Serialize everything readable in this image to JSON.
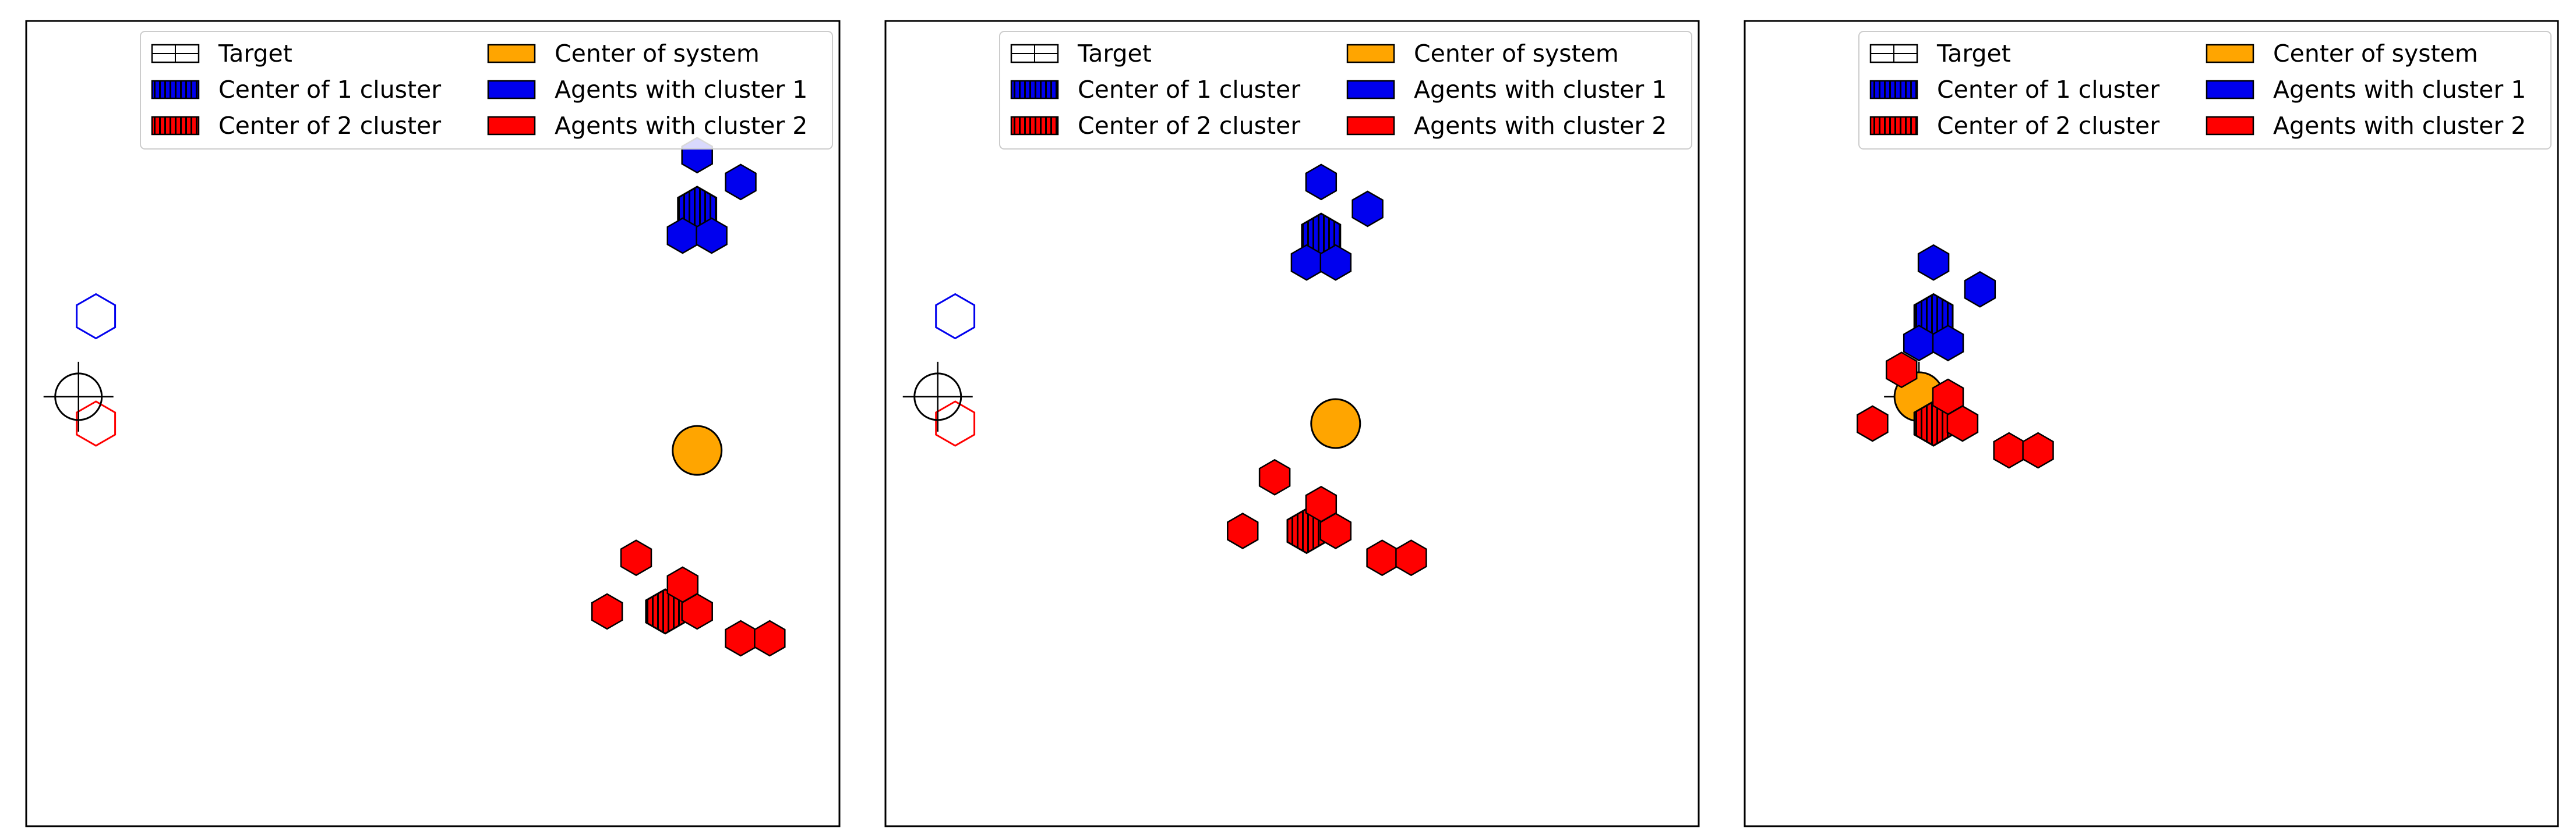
{
  "legend": {
    "target": "Target",
    "center_system": "Center of system",
    "center_cluster_1": "Center of 1 cluster",
    "agents_cluster_1": "Agents with cluster 1",
    "center_cluster_2": "Center of 2 cluster",
    "agents_cluster_2": "Agents with cluster 2"
  },
  "colors": {
    "cluster_1": "#0000ee",
    "cluster_1_center": "#000080",
    "cluster_2": "#ff0000",
    "cluster_2_center": "#8b0000",
    "system_center": "#ffa500",
    "target": "#000000"
  },
  "chart_data": [
    {
      "type": "scatter",
      "panel": 1,
      "xlim": [
        0,
        28
      ],
      "ylim": [
        -16,
        14
      ],
      "target": {
        "x": 1.8,
        "y": 0
      },
      "center_of_system": {
        "x": 23.1,
        "y": -2
      },
      "cluster_1": {
        "center": {
          "x": 23.1,
          "y": 7
        },
        "agents": [
          {
            "x": 23.1,
            "y": 9
          },
          {
            "x": 24.6,
            "y": 8
          },
          {
            "x": 22.6,
            "y": 6
          },
          {
            "x": 23.6,
            "y": 6
          }
        ],
        "target_marker": {
          "x": 2.4,
          "y": 3
        }
      },
      "cluster_2": {
        "center": {
          "x": 22.0,
          "y": -8
        },
        "agents": [
          {
            "x": 21.0,
            "y": -6
          },
          {
            "x": 22.6,
            "y": -7
          },
          {
            "x": 20.0,
            "y": -8
          },
          {
            "x": 23.1,
            "y": -8
          },
          {
            "x": 24.6,
            "y": -9
          },
          {
            "x": 25.6,
            "y": -9
          }
        ],
        "target_marker": {
          "x": 2.4,
          "y": -1
        }
      }
    },
    {
      "type": "scatter",
      "panel": 2,
      "xlim": [
        0,
        28
      ],
      "ylim": [
        -16,
        14
      ],
      "target": {
        "x": 1.8,
        "y": 0
      },
      "center_of_system": {
        "x": 15.5,
        "y": -1
      },
      "cluster_1": {
        "center": {
          "x": 15.0,
          "y": 6
        },
        "agents": [
          {
            "x": 15.0,
            "y": 8
          },
          {
            "x": 16.6,
            "y": 7
          },
          {
            "x": 14.5,
            "y": 5
          },
          {
            "x": 15.5,
            "y": 5
          }
        ],
        "target_marker": {
          "x": 2.4,
          "y": 3
        }
      },
      "cluster_2": {
        "center": {
          "x": 14.5,
          "y": -5
        },
        "agents": [
          {
            "x": 13.4,
            "y": -3
          },
          {
            "x": 15.0,
            "y": -4
          },
          {
            "x": 12.3,
            "y": -5
          },
          {
            "x": 15.5,
            "y": -5
          },
          {
            "x": 17.1,
            "y": -6
          },
          {
            "x": 18.1,
            "y": -6
          }
        ],
        "target_marker": {
          "x": 2.4,
          "y": -1
        }
      }
    },
    {
      "type": "scatter",
      "panel": 3,
      "xlim": [
        0,
        28
      ],
      "ylim": [
        -16,
        14
      ],
      "target": {
        "x": 6.0,
        "y": 0
      },
      "center_of_system": {
        "x": 6.0,
        "y": 0
      },
      "cluster_1": {
        "center": {
          "x": 6.5,
          "y": 3
        },
        "agents": [
          {
            "x": 6.5,
            "y": 5
          },
          {
            "x": 8.1,
            "y": 4
          },
          {
            "x": 6.0,
            "y": 2
          },
          {
            "x": 7.0,
            "y": 2
          }
        ]
      },
      "cluster_2": {
        "center": {
          "x": 6.5,
          "y": -1
        },
        "agents": [
          {
            "x": 5.4,
            "y": 1
          },
          {
            "x": 7.0,
            "y": 0
          },
          {
            "x": 4.4,
            "y": -1
          },
          {
            "x": 7.5,
            "y": -1
          },
          {
            "x": 9.1,
            "y": -2
          },
          {
            "x": 10.1,
            "y": -2
          }
        ]
      }
    }
  ]
}
